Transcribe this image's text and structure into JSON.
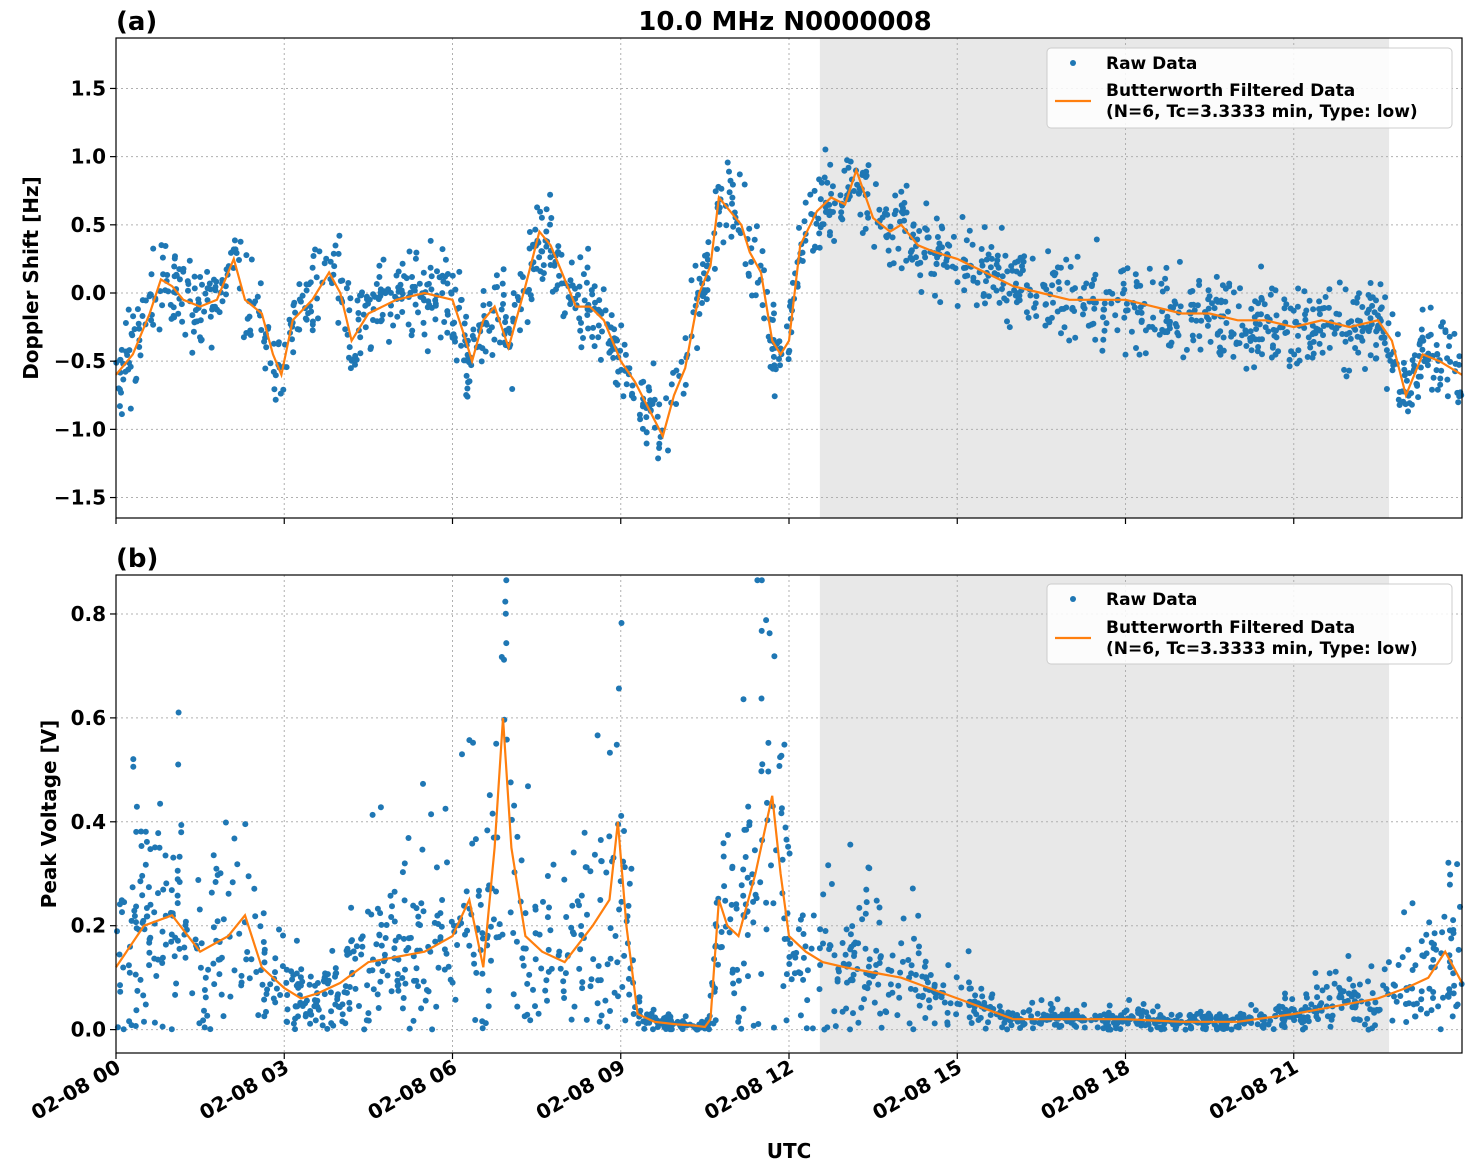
{
  "chart_data": [
    {
      "type": "scatter",
      "panel_label": "(a)",
      "title": "10.0 MHz N0000008",
      "xlabel": "",
      "ylabel": "Doppler Shift [Hz]",
      "xlim_hours": [
        0,
        24
      ],
      "ylim": [
        -1.65,
        1.87
      ],
      "yticks": [
        -1.5,
        -1.0,
        -0.5,
        0.0,
        0.5,
        1.0,
        1.5
      ],
      "ytick_labels": [
        "−1.5",
        "−1.0",
        "−0.5",
        "0.0",
        "0.5",
        "1.0",
        "1.5"
      ],
      "grid": true,
      "shaded_interval_hours": [
        12.55,
        22.7
      ],
      "legend": {
        "placement": "top-right",
        "entries": [
          "Raw Data",
          "Butterworth Filtered Data",
          "(N=6, Tc=3.3333 min, Type: low)"
        ]
      },
      "series": [
        {
          "name": "Raw Data",
          "kind": "points",
          "color": "#1f77b4"
        },
        {
          "name": "Butterworth Filtered Data",
          "kind": "line",
          "color": "#ff7f0e"
        }
      ],
      "filtered_trend": {
        "x_hours": [
          0,
          0.3,
          0.6,
          0.8,
          1.0,
          1.2,
          1.5,
          1.8,
          2.1,
          2.3,
          2.6,
          2.8,
          2.95,
          3.15,
          3.5,
          3.8,
          4.0,
          4.2,
          4.5,
          5.0,
          5.5,
          6.0,
          6.2,
          6.35,
          6.55,
          6.75,
          7.0,
          7.3,
          7.55,
          7.75,
          7.9,
          8.2,
          8.45,
          8.7,
          9.0,
          9.25,
          9.5,
          9.75,
          9.95,
          10.15,
          10.4,
          10.6,
          10.75,
          10.95,
          11.15,
          11.3,
          11.5,
          11.7,
          11.85,
          12.0,
          12.2,
          12.5,
          12.75,
          13.0,
          13.2,
          13.5,
          13.8,
          14.0,
          14.3,
          14.6,
          15.0,
          15.5,
          16.0,
          16.5,
          17.0,
          17.5,
          18.0,
          18.5,
          19.0,
          19.5,
          20.0,
          20.5,
          21.0,
          21.5,
          22.0,
          22.5,
          22.75,
          23.0,
          23.3,
          23.6,
          24.0
        ],
        "y": [
          -0.6,
          -0.45,
          -0.15,
          0.1,
          0.05,
          -0.05,
          -0.1,
          -0.05,
          0.25,
          -0.05,
          -0.15,
          -0.45,
          -0.6,
          -0.2,
          -0.05,
          0.15,
          0.0,
          -0.35,
          -0.15,
          -0.05,
          0.0,
          -0.05,
          -0.3,
          -0.5,
          -0.2,
          -0.1,
          -0.4,
          0.05,
          0.45,
          0.35,
          0.2,
          -0.1,
          -0.1,
          -0.2,
          -0.5,
          -0.65,
          -0.85,
          -1.05,
          -0.75,
          -0.55,
          0.0,
          0.2,
          0.7,
          0.6,
          0.5,
          0.3,
          0.15,
          -0.35,
          -0.45,
          -0.35,
          0.35,
          0.6,
          0.7,
          0.65,
          0.9,
          0.55,
          0.45,
          0.5,
          0.35,
          0.3,
          0.25,
          0.15,
          0.05,
          0.0,
          -0.05,
          -0.05,
          -0.05,
          -0.1,
          -0.15,
          -0.15,
          -0.2,
          -0.2,
          -0.25,
          -0.2,
          -0.25,
          -0.2,
          -0.35,
          -0.75,
          -0.45,
          -0.5,
          -0.6
        ]
      }
    },
    {
      "type": "scatter",
      "panel_label": "(b)",
      "title": "",
      "xlabel": "UTC",
      "ylabel": "Peak Voltage [V]",
      "xlim_hours": [
        0,
        24
      ],
      "ylim": [
        -0.045,
        0.875
      ],
      "yticks": [
        0.0,
        0.2,
        0.4,
        0.6,
        0.8
      ],
      "ytick_labels": [
        "0.0",
        "0.2",
        "0.4",
        "0.6",
        "0.8"
      ],
      "xticks_hours": [
        0,
        3,
        6,
        9,
        12,
        15,
        18,
        21
      ],
      "xtick_labels": [
        "02-08 00",
        "02-08 03",
        "02-08 06",
        "02-08 09",
        "02-08 12",
        "02-08 15",
        "02-08 18",
        "02-08 21"
      ],
      "grid": true,
      "shaded_interval_hours": [
        12.55,
        22.7
      ],
      "legend": {
        "placement": "top-right",
        "entries": [
          "Raw Data",
          "Butterworth Filtered Data",
          "(N=6, Tc=3.3333 min, Type: low)"
        ]
      },
      "series": [
        {
          "name": "Raw Data",
          "kind": "points",
          "color": "#1f77b4"
        },
        {
          "name": "Butterworth Filtered Data",
          "kind": "line",
          "color": "#ff7f0e"
        }
      ],
      "filtered_trend": {
        "x_hours": [
          0,
          0.5,
          1.0,
          1.5,
          2.0,
          2.3,
          2.6,
          3.0,
          3.3,
          3.6,
          4.0,
          4.5,
          5.0,
          5.5,
          6.0,
          6.3,
          6.55,
          6.75,
          6.9,
          7.05,
          7.3,
          7.6,
          8.0,
          8.5,
          8.8,
          8.95,
          9.1,
          9.3,
          9.6,
          10.0,
          10.3,
          10.5,
          10.6,
          10.75,
          10.9,
          11.1,
          11.4,
          11.7,
          11.85,
          12.0,
          12.3,
          12.6,
          13.0,
          13.5,
          14.0,
          14.5,
          15.0,
          15.5,
          16.0,
          16.5,
          17.0,
          18.0,
          19.0,
          20.0,
          21.0,
          21.5,
          22.0,
          22.5,
          23.0,
          23.4,
          23.7,
          24.0
        ],
        "y": [
          0.12,
          0.2,
          0.22,
          0.15,
          0.18,
          0.22,
          0.12,
          0.08,
          0.06,
          0.07,
          0.09,
          0.13,
          0.14,
          0.15,
          0.18,
          0.25,
          0.12,
          0.35,
          0.6,
          0.35,
          0.18,
          0.15,
          0.13,
          0.2,
          0.25,
          0.4,
          0.2,
          0.03,
          0.015,
          0.01,
          0.008,
          0.005,
          0.02,
          0.25,
          0.2,
          0.18,
          0.3,
          0.45,
          0.3,
          0.18,
          0.15,
          0.13,
          0.12,
          0.11,
          0.1,
          0.08,
          0.06,
          0.04,
          0.02,
          0.02,
          0.02,
          0.02,
          0.015,
          0.015,
          0.03,
          0.04,
          0.05,
          0.06,
          0.08,
          0.1,
          0.15,
          0.09
        ]
      }
    }
  ]
}
